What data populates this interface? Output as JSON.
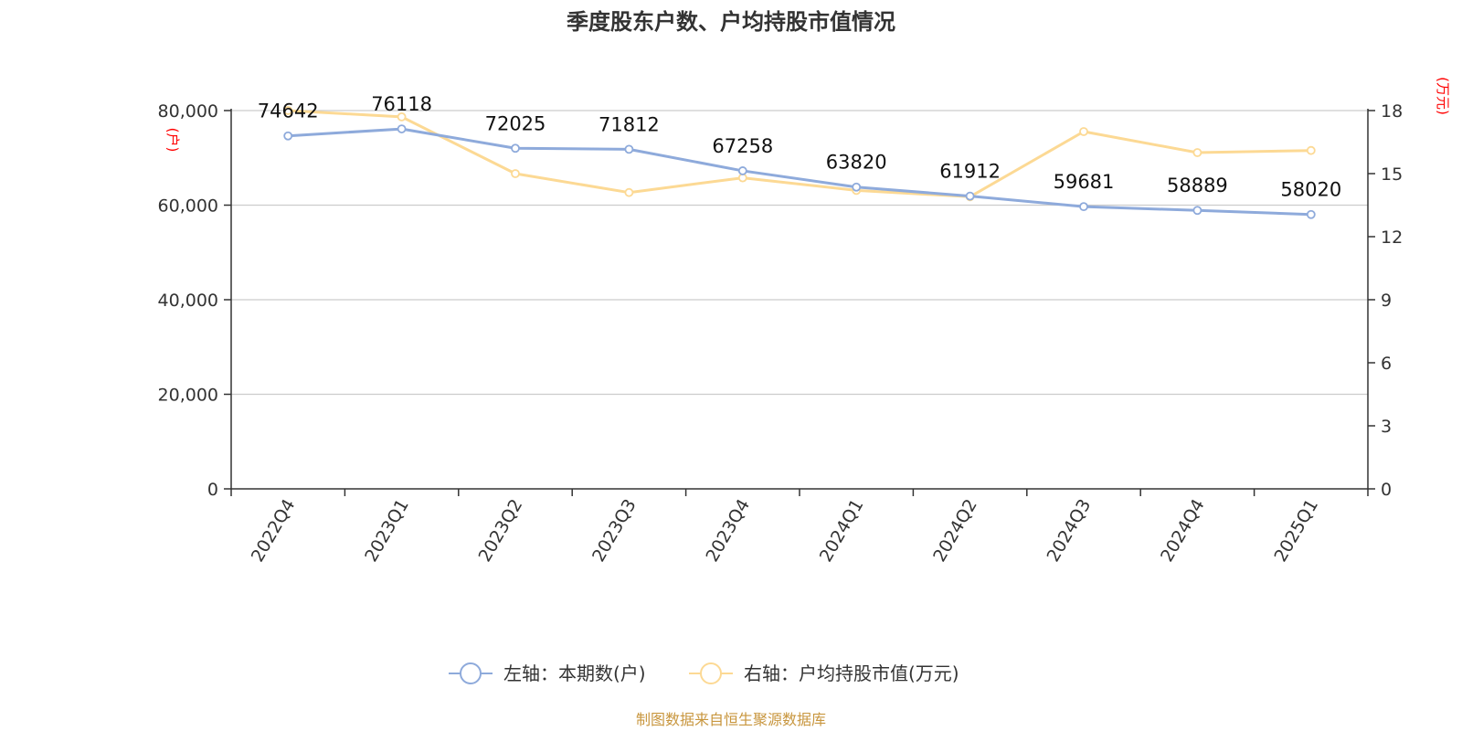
{
  "chart_data": {
    "type": "line",
    "title": "季度股东户数、户均持股市值情况",
    "categories": [
      "2022Q4",
      "2023Q1",
      "2023Q2",
      "2023Q3",
      "2023Q4",
      "2024Q1",
      "2024Q2",
      "2024Q3",
      "2024Q4",
      "2025Q1"
    ],
    "series": [
      {
        "name": "左轴：本期数(户)",
        "axis": "left",
        "color": "#8eaadb",
        "values": [
          74642,
          76118,
          72025,
          71812,
          67258,
          63820,
          61912,
          59681,
          58889,
          58020
        ],
        "labels": [
          "74642",
          "76118",
          "72025",
          "71812",
          "67258",
          "63820",
          "61912",
          "59681",
          "58889",
          "58020"
        ]
      },
      {
        "name": "右轴：户均持股市值(万元)",
        "axis": "right",
        "color": "#fcd994",
        "values": [
          18.0,
          17.7,
          15.0,
          14.1,
          14.8,
          14.2,
          13.9,
          17.0,
          16.0,
          16.1
        ]
      }
    ],
    "left_axis": {
      "unit": "(户)",
      "ylim": [
        0,
        80000
      ],
      "ticks": [
        0,
        20000,
        40000,
        60000,
        80000
      ],
      "tick_labels": [
        "0",
        "20,000",
        "40,000",
        "60,000",
        "80,000"
      ]
    },
    "right_axis": {
      "unit": "(万元)",
      "ylim": [
        0,
        18
      ],
      "ticks": [
        0,
        3,
        6,
        9,
        12,
        15,
        18
      ],
      "tick_labels": [
        "0",
        "3",
        "6",
        "9",
        "12",
        "15",
        "18"
      ]
    },
    "grid": true,
    "legend_position": "bottom-center",
    "source": "制图数据来自恒生聚源数据库",
    "unit_color": "#ff0000",
    "source_color": "#c8963e"
  }
}
